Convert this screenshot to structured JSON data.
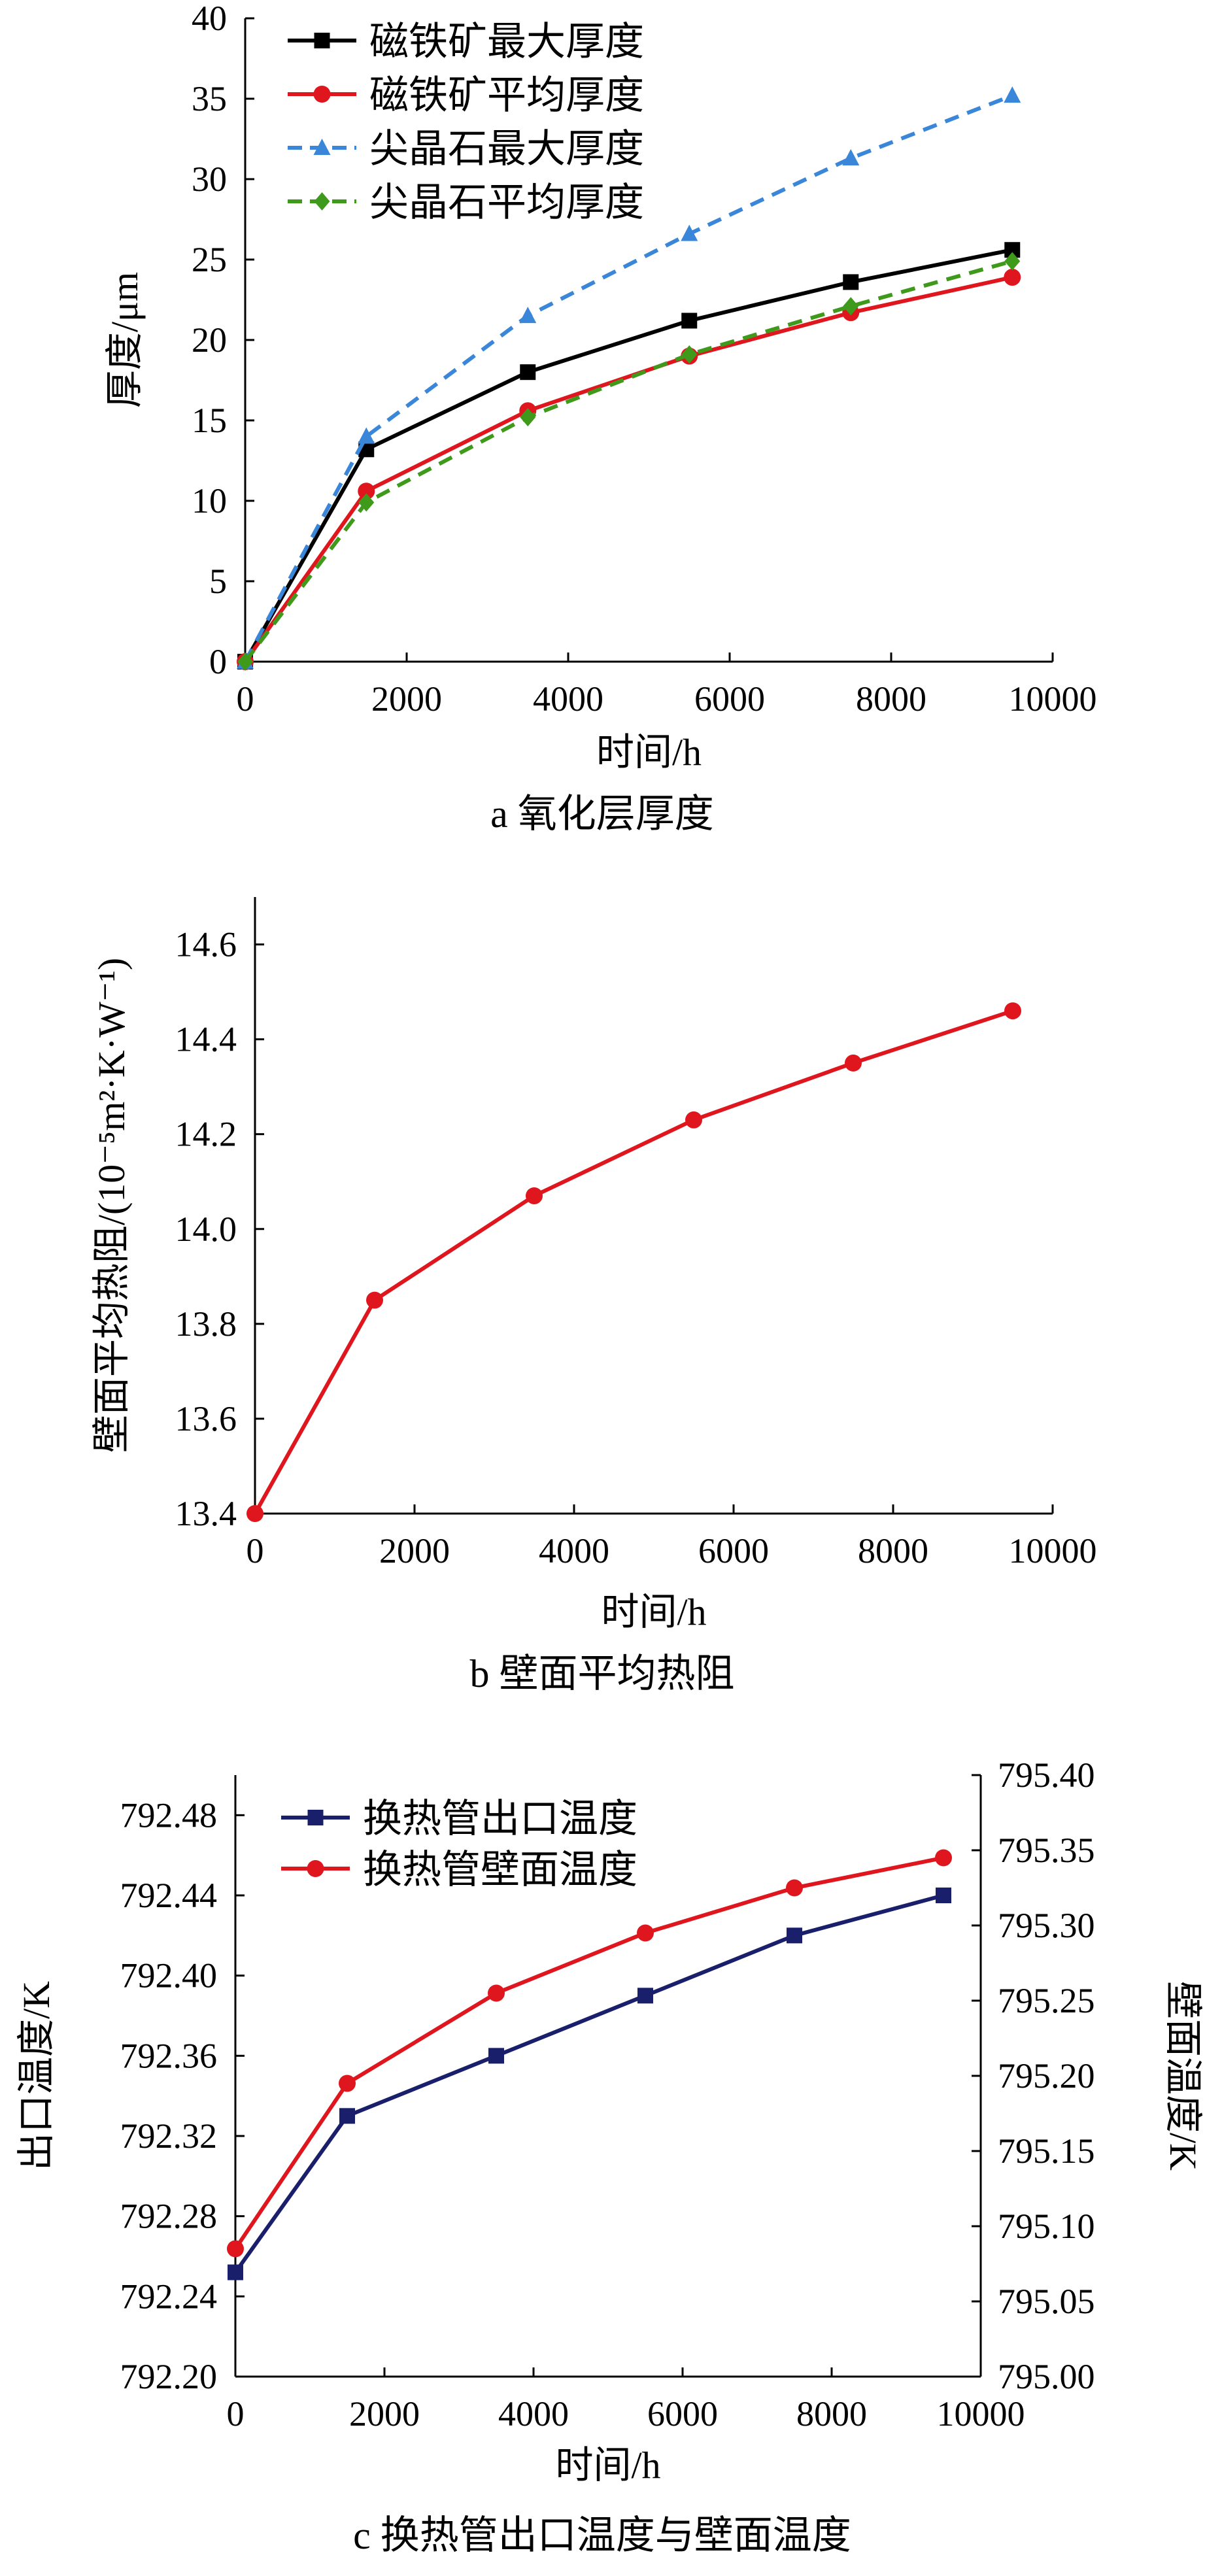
{
  "colors": {
    "black": "#000000",
    "red": "#e0161e",
    "blue": "#3a86d8",
    "green": "#3f9a1c",
    "navy": "#1a1f6b"
  },
  "chart_data": [
    {
      "type": "line",
      "caption": "a  氧化层厚度",
      "xlabel": "时间/h",
      "ylabel": "厚度/μm",
      "xlim": [
        0,
        10000
      ],
      "ylim": [
        0,
        40
      ],
      "xticks": [
        0,
        2000,
        4000,
        6000,
        8000,
        10000
      ],
      "yticks": [
        0,
        5,
        10,
        15,
        20,
        25,
        30,
        35,
        40
      ],
      "x": [
        0,
        1500,
        3500,
        5500,
        7500,
        9500
      ],
      "legend_position": "top-left",
      "series": [
        {
          "name": "磁铁矿最大厚度",
          "values": [
            0,
            13.2,
            18.0,
            21.2,
            23.6,
            25.6
          ],
          "color": "#000000",
          "marker": "square",
          "dash": "solid"
        },
        {
          "name": "磁铁矿平均厚度",
          "values": [
            0,
            10.6,
            15.6,
            19.0,
            21.7,
            23.9
          ],
          "color": "#e0161e",
          "marker": "circle",
          "dash": "solid"
        },
        {
          "name": "尖晶石最大厚度",
          "values": [
            0,
            14.0,
            21.5,
            26.6,
            31.3,
            35.2
          ],
          "color": "#3a86d8",
          "marker": "triangle",
          "dash": "dashed"
        },
        {
          "name": "尖晶石平均厚度",
          "values": [
            0,
            9.9,
            15.2,
            19.1,
            22.1,
            24.9
          ],
          "color": "#3f9a1c",
          "marker": "diamond",
          "dash": "dashed"
        }
      ]
    },
    {
      "type": "line",
      "caption": "b  壁面平均热阻",
      "xlabel": "时间/h",
      "ylabel": "壁面平均热阻/(10⁻⁵m²·K·W⁻¹)",
      "xlim": [
        0,
        10000
      ],
      "ylim": [
        13.4,
        14.7
      ],
      "xticks": [
        0,
        2000,
        4000,
        6000,
        8000,
        10000
      ],
      "yticks": [
        13.4,
        13.6,
        13.8,
        14.0,
        14.2,
        14.4,
        14.6
      ],
      "x": [
        0,
        1500,
        3500,
        5500,
        7500,
        9500
      ],
      "series": [
        {
          "values": [
            13.4,
            13.85,
            14.07,
            14.23,
            14.35,
            14.46
          ],
          "color": "#e0161e",
          "marker": "circle",
          "dash": "solid"
        }
      ]
    },
    {
      "type": "line",
      "caption": "c  换热管出口温度与壁面温度",
      "xlabel": "时间/h",
      "ylabel": "出口温度/K",
      "y2label": "壁面温度/K",
      "xlim": [
        0,
        10000
      ],
      "ylim": [
        792.2,
        792.5
      ],
      "y2lim": [
        795.0,
        795.4
      ],
      "xticks": [
        0,
        2000,
        4000,
        6000,
        8000,
        10000
      ],
      "yticks": [
        792.2,
        792.24,
        792.28,
        792.32,
        792.36,
        792.4,
        792.44,
        792.48
      ],
      "y2ticks": [
        795.0,
        795.05,
        795.1,
        795.15,
        795.2,
        795.25,
        795.3,
        795.35,
        795.4
      ],
      "x": [
        0,
        1500,
        3500,
        5500,
        7500,
        9500
      ],
      "legend_position": "top-left",
      "series": [
        {
          "name": "换热管出口温度",
          "axis": "left",
          "values": [
            792.252,
            792.33,
            792.36,
            792.39,
            792.42,
            792.44
          ],
          "color": "#1a1f6b",
          "marker": "square",
          "dash": "solid"
        },
        {
          "name": "换热管壁面温度",
          "axis": "right",
          "values": [
            795.085,
            795.195,
            795.255,
            795.295,
            795.325,
            795.345
          ],
          "color": "#e0161e",
          "marker": "circle",
          "dash": "solid"
        }
      ]
    }
  ]
}
